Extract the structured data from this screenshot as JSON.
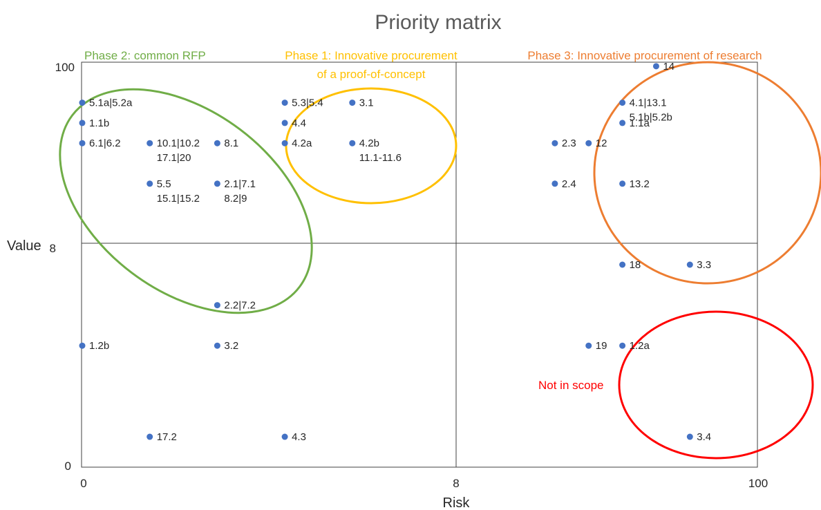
{
  "chart_data": {
    "type": "scatter",
    "title": "Priority matrix",
    "xlabel": "Risk",
    "ylabel": "Value",
    "x_ticks": [
      "0",
      "8",
      "100"
    ],
    "y_ticks": [
      "0",
      "8",
      "100"
    ],
    "xlim": [
      0,
      10
    ],
    "ylim": [
      0,
      10
    ],
    "grid": false,
    "point_color": "#4472C4",
    "points": [
      {
        "x": 0,
        "y": 9.0,
        "label": [
          "5.1a|5.2a"
        ]
      },
      {
        "x": 0,
        "y": 8.5,
        "label": [
          "1.1b"
        ]
      },
      {
        "x": 0,
        "y": 8.0,
        "label": [
          "6.1|6.2"
        ]
      },
      {
        "x": 0,
        "y": 3.0,
        "label": [
          "1.2b"
        ]
      },
      {
        "x": 1,
        "y": 8.0,
        "label": [
          "10.1|10.2",
          "17.1|20"
        ]
      },
      {
        "x": 1,
        "y": 7.0,
        "label": [
          "5.5",
          "15.1|15.2"
        ]
      },
      {
        "x": 1,
        "y": 0.75,
        "label": [
          "17.2"
        ]
      },
      {
        "x": 2,
        "y": 8.0,
        "label": [
          "8.1"
        ]
      },
      {
        "x": 2,
        "y": 7.0,
        "label": [
          "2.1|7.1",
          "8.2|9"
        ]
      },
      {
        "x": 2,
        "y": 4.0,
        "label": [
          "2.2|7.2"
        ]
      },
      {
        "x": 2,
        "y": 3.0,
        "label": [
          "3.2"
        ]
      },
      {
        "x": 3,
        "y": 9.0,
        "label": [
          "5.3|5.4"
        ]
      },
      {
        "x": 3,
        "y": 8.5,
        "label": [
          "4.4"
        ]
      },
      {
        "x": 3,
        "y": 8.0,
        "label": [
          "4.2a"
        ]
      },
      {
        "x": 3,
        "y": 0.75,
        "label": [
          "4.3"
        ]
      },
      {
        "x": 4,
        "y": 9.0,
        "label": [
          "3.1"
        ]
      },
      {
        "x": 4,
        "y": 8.0,
        "label": [
          "4.2b",
          "11.1-11.6"
        ]
      },
      {
        "x": 7,
        "y": 8.0,
        "label": [
          "2.3"
        ]
      },
      {
        "x": 7,
        "y": 7.0,
        "label": [
          "2.4"
        ]
      },
      {
        "x": 7.5,
        "y": 8.0,
        "label": [
          "12"
        ]
      },
      {
        "x": 7.5,
        "y": 3.0,
        "label": [
          "19"
        ]
      },
      {
        "x": 8,
        "y": 9.0,
        "label": [
          "4.1|13.1",
          "5.1b|5.2b"
        ]
      },
      {
        "x": 8,
        "y": 8.5,
        "label": [
          "1.1a"
        ]
      },
      {
        "x": 8,
        "y": 7.0,
        "label": [
          "13.2"
        ]
      },
      {
        "x": 8,
        "y": 5.0,
        "label": [
          "18"
        ]
      },
      {
        "x": 8,
        "y": 3.0,
        "label": [
          "1.2a"
        ]
      },
      {
        "x": 8.5,
        "y": 9.9,
        "label": [
          "14"
        ]
      },
      {
        "x": 9,
        "y": 5.0,
        "label": [
          "3.3"
        ]
      },
      {
        "x": 9,
        "y": 0.75,
        "label": [
          "3.4"
        ]
      }
    ],
    "regions": [
      {
        "label": [
          "Phase 2: common RFP"
        ],
        "color": "#70AD47"
      },
      {
        "label": [
          "Phase 1: Innovative procurement",
          "of a proof-of-concept"
        ],
        "color": "#FFC000"
      },
      {
        "label": [
          "Phase 3: Innovative procurement of research"
        ],
        "color": "#ED7D31"
      },
      {
        "label": [
          "Not in scope"
        ],
        "color": "#FF0000"
      }
    ]
  }
}
